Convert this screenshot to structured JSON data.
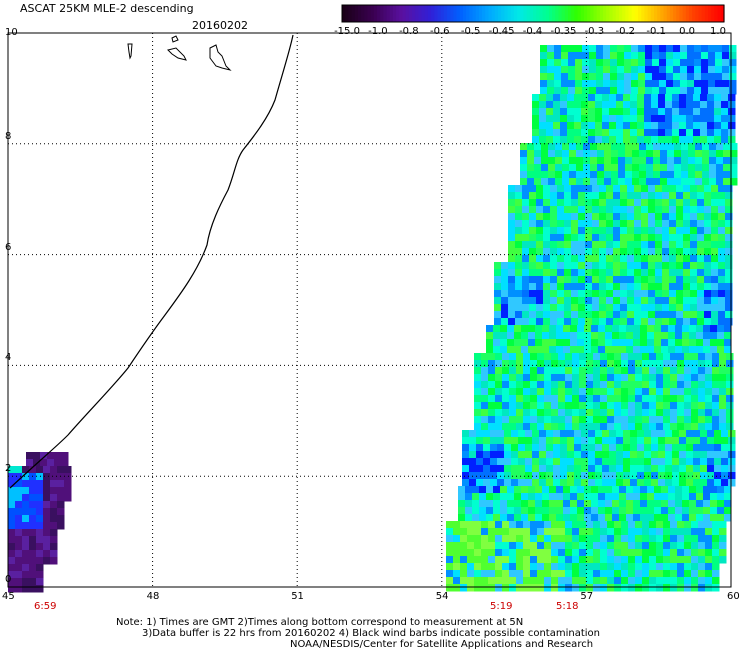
{
  "header": {
    "title": "ASCAT 25KM MLE-2 descending",
    "date": "20160202"
  },
  "colorbar": {
    "labels": [
      "-15.0",
      "-1.0",
      "-0.8",
      "-0.6",
      "-0.5",
      "-0.45",
      "-0.4",
      "-0.35",
      "-0.3",
      "-0.2",
      "-0.1",
      "0.0",
      "1.0"
    ],
    "colors": [
      "#1a0018",
      "#3a0050",
      "#5a10a0",
      "#3020d8",
      "#0060ff",
      "#00a8ff",
      "#00e8e8",
      "#00ff90",
      "#30ff00",
      "#a0ff00",
      "#ffff00",
      "#ffa000",
      "#ff4000",
      "#ff0000"
    ]
  },
  "axes": {
    "x_ticks": [
      "45",
      "48",
      "51",
      "54",
      "57",
      "60"
    ],
    "y_ticks": [
      "0",
      "2",
      "4",
      "6",
      "8",
      "10"
    ],
    "x_range": [
      45,
      60
    ],
    "y_range": [
      0,
      10
    ],
    "grid": true
  },
  "pass_times": [
    "6:59",
    "5:19",
    "5:18"
  ],
  "notes": {
    "line1": "Note: 1) Times are GMT 2)Times along bottom correspond to measurement at 5N",
    "line2": "3)Data buffer is 22 hrs from 20160202 4) Black wind barbs indicate possible contamination",
    "line3": "NOAA/NESDIS/Center for Satellite Applications and Research"
  }
}
